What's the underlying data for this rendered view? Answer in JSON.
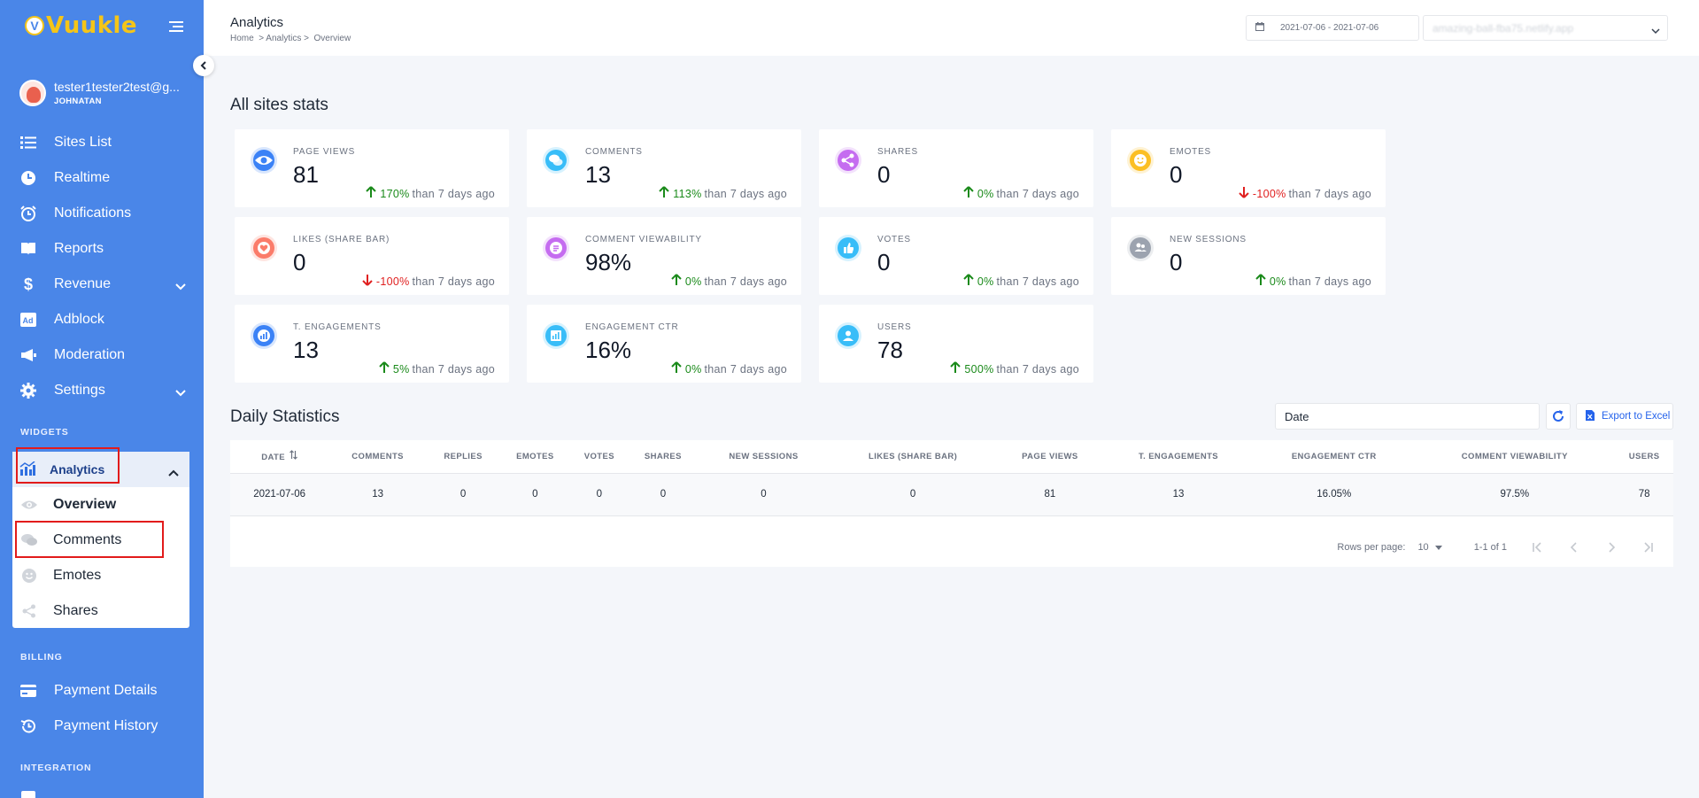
{
  "sidebar": {
    "logo_letter": "V",
    "logo_text": "Vuukle",
    "user": {
      "email": "tester1tester2test@g...",
      "name": "JOHNATAN"
    },
    "items": [
      {
        "label": "Sites List",
        "icon": "list-icon"
      },
      {
        "label": "Realtime",
        "icon": "clock-icon"
      },
      {
        "label": "Notifications",
        "icon": "alarm-icon"
      },
      {
        "label": "Reports",
        "icon": "book-icon"
      },
      {
        "label": "Revenue",
        "icon": "dollar-icon"
      },
      {
        "label": "Adblock",
        "icon": "ad-icon"
      },
      {
        "label": "Moderation",
        "icon": "megaphone-icon"
      },
      {
        "label": "Settings",
        "icon": "gear-icon"
      }
    ],
    "widgets_title": "WIDGETS",
    "analytics": {
      "label": "Analytics",
      "subitems": [
        {
          "label": "Overview"
        },
        {
          "label": "Comments"
        },
        {
          "label": "Emotes"
        },
        {
          "label": "Shares"
        }
      ]
    },
    "billing_title": "BILLING",
    "billing_items": [
      {
        "label": "Payment Details"
      },
      {
        "label": "Payment History"
      }
    ],
    "integration_title": "INTEGRATION"
  },
  "header": {
    "title": "Analytics",
    "breadcrumb": "Home  > Analytics >  Overview",
    "date_range": "2021-07-06 - 2021-07-06",
    "site_select": "amazing-ball-fba75.netlify.app"
  },
  "stats": {
    "title": "All sites stats",
    "trend_suffix": "than 7 days ago",
    "cards": [
      {
        "label": "PAGE VIEWS",
        "value": "81",
        "pct": "170%",
        "dir": "up",
        "color": "#3b82f6"
      },
      {
        "label": "COMMENTS",
        "value": "13",
        "pct": "113%",
        "dir": "up",
        "color": "#38bdf8"
      },
      {
        "label": "SHARES",
        "value": "0",
        "pct": "0%",
        "dir": "up",
        "color": "#c56cf0"
      },
      {
        "label": "EMOTES",
        "value": "0",
        "pct": "-100%",
        "dir": "down",
        "color": "#fbbf24"
      },
      {
        "label": "LIKES (SHARE BAR)",
        "value": "0",
        "pct": "-100%",
        "dir": "down",
        "color": "#fb7c6a"
      },
      {
        "label": "COMMENT VIEWABILITY",
        "value": "98%",
        "pct": "0%",
        "dir": "up",
        "color": "#c56cf0"
      },
      {
        "label": "VOTES",
        "value": "0",
        "pct": "0%",
        "dir": "up",
        "color": "#38bdf8"
      },
      {
        "label": "NEW SESSIONS",
        "value": "0",
        "pct": "0%",
        "dir": "up",
        "color": "#9ca3af"
      },
      {
        "label": "T. ENGAGEMENTS",
        "value": "13",
        "pct": "5%",
        "dir": "up",
        "color": "#3b82f6"
      },
      {
        "label": "ENGAGEMENT CTR",
        "value": "16%",
        "pct": "0%",
        "dir": "up",
        "color": "#38bdf8"
      },
      {
        "label": "USERS",
        "value": "78",
        "pct": "500%",
        "dir": "up",
        "color": "#38bdf8"
      }
    ]
  },
  "daily": {
    "title": "Daily Statistics",
    "date_filter": "Date",
    "export_label": "Export to Excel",
    "columns": [
      "DATE",
      "COMMENTS",
      "REPLIES",
      "EMOTES",
      "VOTES",
      "SHARES",
      "NEW SESSIONS",
      "LIKES (SHARE BAR)",
      "PAGE VIEWS",
      "T. ENGAGEMENTS",
      "ENGAGEMENT CTR",
      "COMMENT VIEWABILITY",
      "USERS"
    ],
    "rows": [
      [
        "2021-07-06",
        "13",
        "0",
        "0",
        "0",
        "0",
        "0",
        "0",
        "81",
        "13",
        "16.05%",
        "97.5%",
        "78"
      ]
    ],
    "rows_per_page_label": "Rows per page:",
    "rows_per_page": "10",
    "range": "1-1 of 1"
  }
}
